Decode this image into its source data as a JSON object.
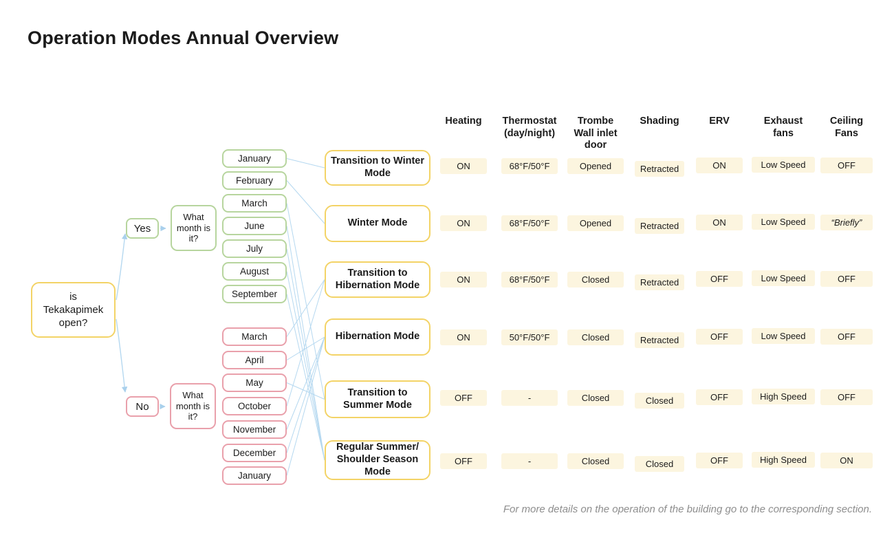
{
  "title": "Operation Modes Annual Overview",
  "footer_note": "For more details on the operation of the building go to the corresponding section.",
  "colors": {
    "mode_border": "#f3d366",
    "open_border": "#b7d59e",
    "closed_border": "#e9a0ab",
    "cell_background": "#fcf5df",
    "connector_line": "#b5d8f0",
    "footer_text": "#8e8e8e"
  },
  "flow": {
    "root_lines": [
      "is",
      "Tekakapimek",
      "open?"
    ],
    "yes_label": "Yes",
    "no_label": "No",
    "month_question": "What month is it?",
    "open_months": [
      "January",
      "February",
      "March",
      "June",
      "July",
      "August",
      "September"
    ],
    "closed_months": [
      "March",
      "April",
      "May",
      "October",
      "November",
      "December",
      "January"
    ],
    "connections": [
      {
        "from": "open-0",
        "to": 0
      },
      {
        "from": "open-1",
        "to": 1
      },
      {
        "from": "open-2",
        "to": 4
      },
      {
        "from": "open-3",
        "to": 5
      },
      {
        "from": "open-4",
        "to": 5
      },
      {
        "from": "open-5",
        "to": 5
      },
      {
        "from": "open-6",
        "to": 5
      },
      {
        "from": "closed-0",
        "to": 2
      },
      {
        "from": "closed-1",
        "to": 3
      },
      {
        "from": "closed-2",
        "to": 4
      },
      {
        "from": "closed-3",
        "to": 2
      },
      {
        "from": "closed-4",
        "to": 3
      },
      {
        "from": "closed-5",
        "to": 3
      },
      {
        "from": "closed-6",
        "to": 3
      }
    ]
  },
  "modes": [
    "Transition to Winter Mode",
    "Winter Mode",
    "Transition to Hibernation Mode",
    "Hibernation Mode",
    "Transition to Summer Mode",
    "Regular Summer/ Shoulder Season Mode"
  ],
  "table": {
    "columns": [
      "Heating",
      "Thermostat (day/night)",
      "Trombe Wall inlet door",
      "Shading",
      "ERV",
      "Exhaust fans",
      "Ceiling Fans"
    ],
    "rows": [
      {
        "mode": "Transition to Winter Mode",
        "values": [
          "ON",
          "68°F/50°F",
          "Opened",
          "Retracted",
          "ON",
          "Low Speed",
          "OFF"
        ]
      },
      {
        "mode": "Winter Mode",
        "values": [
          "ON",
          "68°F/50°F",
          "Opened",
          "Retracted",
          "ON",
          "Low Speed",
          "“Briefly”"
        ]
      },
      {
        "mode": "Transition to Hibernation Mode",
        "values": [
          "ON",
          "68°F/50°F",
          "Closed",
          "Retracted",
          "OFF",
          "Low Speed",
          "OFF"
        ]
      },
      {
        "mode": "Hibernation Mode",
        "values": [
          "ON",
          "50°F/50°F",
          "Closed",
          "Retracted",
          "OFF",
          "Low Speed",
          "OFF"
        ]
      },
      {
        "mode": "Transition to Summer Mode",
        "values": [
          "OFF",
          "-",
          "Closed",
          "Closed",
          "OFF",
          "High Speed",
          "OFF"
        ]
      },
      {
        "mode": "Regular Summer/ Shoulder Season Mode",
        "values": [
          "OFF",
          "-",
          "Closed",
          "Closed",
          "OFF",
          "High Speed",
          "ON"
        ]
      }
    ]
  }
}
